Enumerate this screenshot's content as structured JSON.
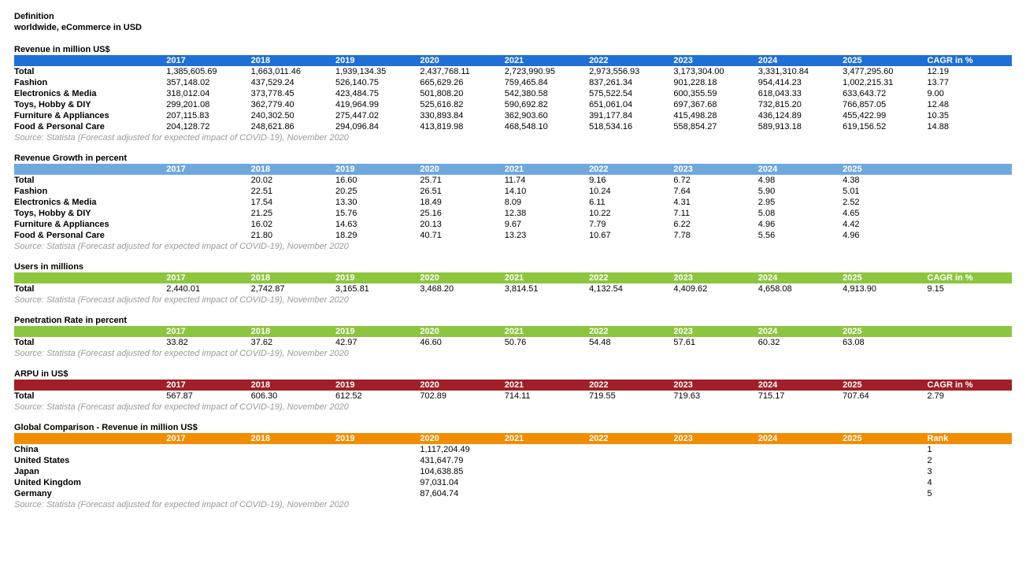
{
  "header": {
    "line1": "Definition",
    "line2": "worldwide, eCommerce in USD"
  },
  "years": [
    "2017",
    "2018",
    "2019",
    "2020",
    "2021",
    "2022",
    "2023",
    "2024",
    "2025"
  ],
  "sections": [
    {
      "key": "revenue",
      "title": "Revenue in million US$",
      "header_bg": "#1f6fd6",
      "header_fg": "#ffffff",
      "final_col": "CAGR in %",
      "source": "Source: Statista (Forecast adjusted for expected impact of COVID-19), November 2020",
      "rows": [
        {
          "label": "Total",
          "cells": [
            "1,385,605.69",
            "1,663,011.46",
            "1,939,134.35",
            "2,437,768.11",
            "2,723,990.95",
            "2,973,556.93",
            "3,173,304.00",
            "3,331,310.84",
            "3,477,295.60",
            "12.19"
          ]
        },
        {
          "label": "Fashion",
          "cells": [
            "357,148.02",
            "437,529.24",
            "526,140.75",
            "665,629.26",
            "759,465.84",
            "837,261.34",
            "901,228.18",
            "954,414.23",
            "1,002,215.31",
            "13.77"
          ]
        },
        {
          "label": "Electronics & Media",
          "cells": [
            "318,012.04",
            "373,778.45",
            "423,484.75",
            "501,808.20",
            "542,380.58",
            "575,522.54",
            "600,355.59",
            "618,043.33",
            "633,643.72",
            "9.00"
          ]
        },
        {
          "label": "Toys, Hobby & DIY",
          "cells": [
            "299,201.08",
            "362,779.40",
            "419,964.99",
            "525,616.82",
            "590,692.82",
            "651,061.04",
            "697,367.68",
            "732,815.20",
            "766,857.05",
            "12.48"
          ]
        },
        {
          "label": "Furniture & Appliances",
          "cells": [
            "207,115.83",
            "240,302.50",
            "275,447.02",
            "330,893.84",
            "362,903.60",
            "391,177.84",
            "415,498.28",
            "436,124.89",
            "455,422.99",
            "10.35"
          ]
        },
        {
          "label": "Food & Personal Care",
          "cells": [
            "204,128.72",
            "248,621.86",
            "294,096.84",
            "413,819.98",
            "468,548.10",
            "518,534.16",
            "558,854.27",
            "589,913.18",
            "619,156.52",
            "14.88"
          ]
        }
      ]
    },
    {
      "key": "growth",
      "title": "Revenue Growth in percent",
      "header_bg": "#6fa8dc",
      "header_fg": "#ffffff",
      "final_col": "",
      "source": "Source: Statista (Forecast adjusted for expected impact of COVID-19), November 2020",
      "rows": [
        {
          "label": "Total",
          "cells": [
            "",
            "20.02",
            "16.60",
            "25.71",
            "11.74",
            "9.16",
            "6.72",
            "4.98",
            "4.38",
            ""
          ]
        },
        {
          "label": "Fashion",
          "cells": [
            "",
            "22.51",
            "20.25",
            "26.51",
            "14.10",
            "10.24",
            "7.64",
            "5.90",
            "5.01",
            ""
          ]
        },
        {
          "label": "Electronics & Media",
          "cells": [
            "",
            "17.54",
            "13.30",
            "18.49",
            "8.09",
            "6.11",
            "4.31",
            "2.95",
            "2.52",
            ""
          ]
        },
        {
          "label": "Toys, Hobby & DIY",
          "cells": [
            "",
            "21.25",
            "15.76",
            "25.16",
            "12.38",
            "10.22",
            "7.11",
            "5.08",
            "4.65",
            ""
          ]
        },
        {
          "label": "Furniture & Appliances",
          "cells": [
            "",
            "16.02",
            "14.63",
            "20.13",
            "9.67",
            "7.79",
            "6.22",
            "4.96",
            "4.42",
            ""
          ]
        },
        {
          "label": "Food & Personal Care",
          "cells": [
            "",
            "21.80",
            "18.29",
            "40.71",
            "13.23",
            "10.67",
            "7.78",
            "5.56",
            "4.96",
            ""
          ]
        }
      ]
    },
    {
      "key": "users",
      "title": "Users in millions",
      "header_bg": "#8cc63f",
      "header_fg": "#ffffff",
      "final_col": "CAGR in %",
      "source": "Source: Statista (Forecast adjusted for expected impact of COVID-19), November 2020",
      "rows": [
        {
          "label": "Total",
          "cells": [
            "2,440.01",
            "2,742.87",
            "3,165.81",
            "3,468.20",
            "3,814.51",
            "4,132.54",
            "4,409.62",
            "4,658.08",
            "4,913.90",
            "9.15"
          ]
        }
      ]
    },
    {
      "key": "penetration",
      "title": "Penetration Rate in percent",
      "header_bg": "#8cc63f",
      "header_fg": "#ffffff",
      "final_col": "",
      "source": "Source: Statista (Forecast adjusted for expected impact of COVID-19), November 2020",
      "rows": [
        {
          "label": "Total",
          "cells": [
            "33.82",
            "37.62",
            "42.97",
            "46.60",
            "50.76",
            "54.48",
            "57.61",
            "60.32",
            "63.08",
            ""
          ]
        }
      ]
    },
    {
      "key": "arpu",
      "title": "ARPU in US$",
      "header_bg": "#a01f28",
      "header_fg": "#ffffff",
      "final_col": "CAGR in %",
      "source": "Source: Statista (Forecast adjusted for expected impact of COVID-19), November 2020",
      "rows": [
        {
          "label": "Total",
          "cells": [
            "567.87",
            "606.30",
            "612.52",
            "702.89",
            "714.11",
            "719.55",
            "719.63",
            "715.17",
            "707.64",
            "2.79"
          ]
        }
      ]
    },
    {
      "key": "global",
      "title": "Global Comparison - Revenue in million US$",
      "header_bg": "#f28c00",
      "header_fg": "#ffffff",
      "final_col": "Rank",
      "source": "Source: Statista (Forecast adjusted for expected impact of COVID-19), November 2020",
      "rows": [
        {
          "label": "China",
          "cells": [
            "",
            "",
            "",
            "1,117,204.49",
            "",
            "",
            "",
            "",
            "",
            "1"
          ]
        },
        {
          "label": "United States",
          "cells": [
            "",
            "",
            "",
            "431,647.79",
            "",
            "",
            "",
            "",
            "",
            "2"
          ]
        },
        {
          "label": "Japan",
          "cells": [
            "",
            "",
            "",
            "104,638.85",
            "",
            "",
            "",
            "",
            "",
            "3"
          ]
        },
        {
          "label": "United Kingdom",
          "cells": [
            "",
            "",
            "",
            "97,031.04",
            "",
            "",
            "",
            "",
            "",
            "4"
          ]
        },
        {
          "label": "Germany",
          "cells": [
            "",
            "",
            "",
            "87,604.74",
            "",
            "",
            "",
            "",
            "",
            "5"
          ]
        }
      ]
    }
  ]
}
